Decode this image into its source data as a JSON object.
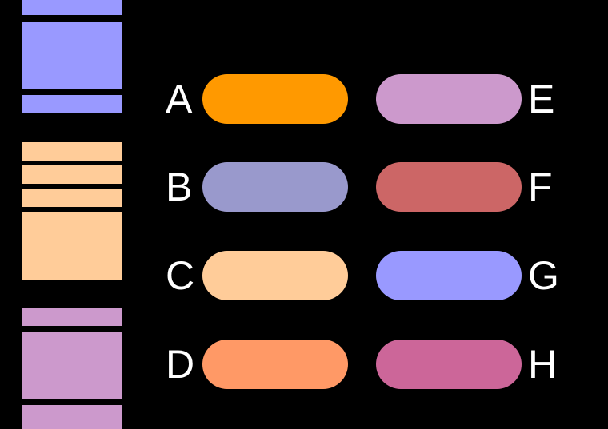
{
  "colors": {
    "sidebar_top": "#9999ff",
    "sidebar_mid": "#ffcc99",
    "sidebar_bottom": "#cc99cc"
  },
  "buttons": [
    {
      "label": "A",
      "color": "#ff9900"
    },
    {
      "label": "B",
      "color": "#9999cc"
    },
    {
      "label": "C",
      "color": "#ffcc99"
    },
    {
      "label": "D",
      "color": "#ff9966"
    },
    {
      "label": "E",
      "color": "#cc99cc"
    },
    {
      "label": "F",
      "color": "#cc6666"
    },
    {
      "label": "G",
      "color": "#9999ff"
    },
    {
      "label": "H",
      "color": "#cc6699"
    }
  ]
}
